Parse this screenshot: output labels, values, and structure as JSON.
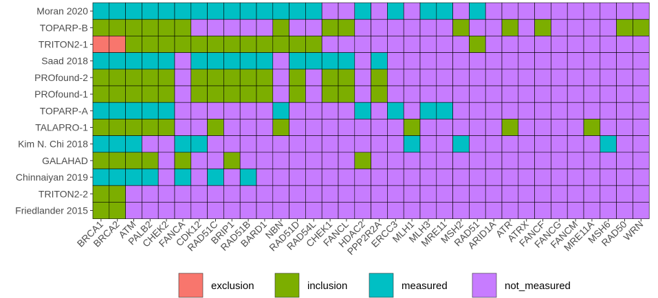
{
  "chart_data": {
    "type": "heatmap",
    "title": "",
    "xlabel": "",
    "ylabel": "",
    "rows": [
      "Moran 2020",
      "TOPARP-B",
      "TRITON2-1",
      "Saad 2018",
      "PROfound-2",
      "PROfound-1",
      "TOPARP-A",
      "TALAPRO-1",
      "Kim N. Chi 2018",
      "GALAHAD",
      "Chinnaiyan 2019",
      "TRITON2-2",
      "Friedlander 2015"
    ],
    "columns": [
      "BRCA1",
      "BRCA2",
      "ATM",
      "PALB2",
      "CHEK2",
      "FANCA",
      "CDK12",
      "RAD51C",
      "BRIP1",
      "RAD51B",
      "BARD1",
      "NBN",
      "RAD51D",
      "RAD54L",
      "CHEK1",
      "FANCL",
      "HDAC2",
      "PPP2R2A",
      "ERCC3",
      "MLH1",
      "MLH3",
      "MRE11",
      "MSH2",
      "RAD51",
      "ARID1A",
      "ATR",
      "ATRX",
      "FANCF",
      "FANCG",
      "FANCM",
      "MRE11A",
      "MSH6",
      "RAD50",
      "WRN"
    ],
    "categories": [
      "exclusion",
      "inclusion",
      "measured",
      "not_measured"
    ],
    "colors": {
      "exclusion": "#F8766D",
      "inclusion": "#7CAE00",
      "measured": "#00BFC4",
      "not_measured": "#C77CFF"
    },
    "code_map": {
      "E": "exclusion",
      "I": "inclusion",
      "M": "measured",
      "N": "not_measured"
    },
    "matrix": [
      "MMMMMMMMMMMMMMNNMNMNMMNMNNNNNNNNNN",
      "IIIIIINNNNNINNIINNNNNNINNININNNNII",
      "EEIIIIIIIIIIIINNNNNNNNNINNNNNNNNNN",
      "MMMMMNMMMMMNMMMMNMNNNNNNNNNNNNNNNN",
      "IIIIINIIIIININIININNNNNNNNNNNNNNNN",
      "IIIIINIIIIININIININNNNNNNNNNNNNNNN",
      "MMMMMNNNNNNMNNNNMNMNMMNNNNNNNNNNNN",
      "IIIIINNINNNINNNNNNNINNNNNINNNNINNN",
      "MMMNNMMNNNNNNNNNNNNMNNMNNNNNNNNMNN",
      "IIIININNINNNNNNNINNNNNNNNNNNNNNNNN",
      "MMMMNMNMNMNNNNNNNNNNNNNNNNNNNNNNNN",
      "IINNNNNNNNNNNNNNNNNNNNNNNNNNNNNNNN",
      "IINNNNNNNNNNNNNNNNNNNNNNNNNNNNNNNN"
    ],
    "legend": {
      "position": "bottom",
      "entries": [
        {
          "key": "exclusion",
          "label": "exclusion"
        },
        {
          "key": "inclusion",
          "label": "inclusion"
        },
        {
          "key": "measured",
          "label": "measured"
        },
        {
          "key": "not_measured",
          "label": "not_measured"
        }
      ]
    }
  }
}
